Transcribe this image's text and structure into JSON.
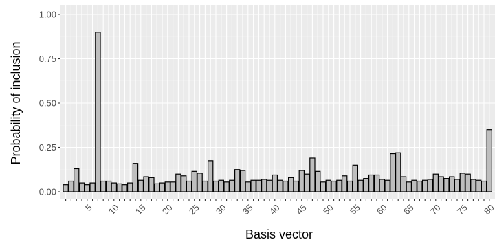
{
  "chart_data": {
    "type": "bar",
    "title": "",
    "xlabel": "Basis vector",
    "ylabel": "Probability of inclusion",
    "ylim": [
      0,
      1.05
    ],
    "y_ticks": [
      0,
      0.25,
      0.5,
      0.75,
      1
    ],
    "y_tick_labels": [
      "0.00",
      "0.25",
      "0.50",
      "0.75",
      "1.00"
    ],
    "x_tick_labels": [
      "5",
      "10",
      "15",
      "20",
      "25",
      "30",
      "35",
      "40",
      "45",
      "50",
      "55",
      "60",
      "65",
      "70",
      "75",
      "80"
    ],
    "grid": true,
    "legend": "none",
    "categories": [
      1,
      2,
      3,
      4,
      5,
      6,
      7,
      8,
      9,
      10,
      11,
      12,
      13,
      14,
      15,
      16,
      17,
      18,
      19,
      20,
      21,
      22,
      23,
      24,
      25,
      26,
      27,
      28,
      29,
      30,
      31,
      32,
      33,
      34,
      35,
      36,
      37,
      38,
      39,
      40,
      41,
      42,
      43,
      44,
      45,
      46,
      47,
      48,
      49,
      50,
      51,
      52,
      53,
      54,
      55,
      56,
      57,
      58,
      59,
      60,
      61,
      62,
      63,
      64,
      65,
      66,
      67,
      68,
      69,
      70,
      71,
      72,
      73,
      74,
      75,
      76,
      77,
      78,
      79,
      80
    ],
    "values": [
      0.04,
      0.06,
      0.13,
      0.05,
      0.04,
      0.05,
      0.9,
      0.06,
      0.06,
      0.05,
      0.045,
      0.04,
      0.05,
      0.16,
      0.065,
      0.085,
      0.08,
      0.045,
      0.05,
      0.055,
      0.055,
      0.1,
      0.09,
      0.06,
      0.115,
      0.105,
      0.06,
      0.175,
      0.06,
      0.065,
      0.055,
      0.065,
      0.125,
      0.12,
      0.055,
      0.065,
      0.065,
      0.07,
      0.065,
      0.095,
      0.065,
      0.06,
      0.08,
      0.06,
      0.12,
      0.1,
      0.19,
      0.115,
      0.055,
      0.065,
      0.06,
      0.065,
      0.09,
      0.06,
      0.15,
      0.065,
      0.075,
      0.095,
      0.095,
      0.07,
      0.065,
      0.215,
      0.22,
      0.085,
      0.055,
      0.065,
      0.06,
      0.065,
      0.07,
      0.1,
      0.085,
      0.075,
      0.085,
      0.07,
      0.105,
      0.1,
      0.07,
      0.065,
      0.06,
      0.35
    ],
    "colors": {
      "panel_background": "#ebebeb",
      "grid_major": "#ffffff",
      "grid_minor": "#f2f2f2",
      "bar_fill": "#bebebe",
      "bar_outline": "#000000",
      "tick_color": "#333333",
      "tick_label_color": "#4d4d4d"
    }
  }
}
